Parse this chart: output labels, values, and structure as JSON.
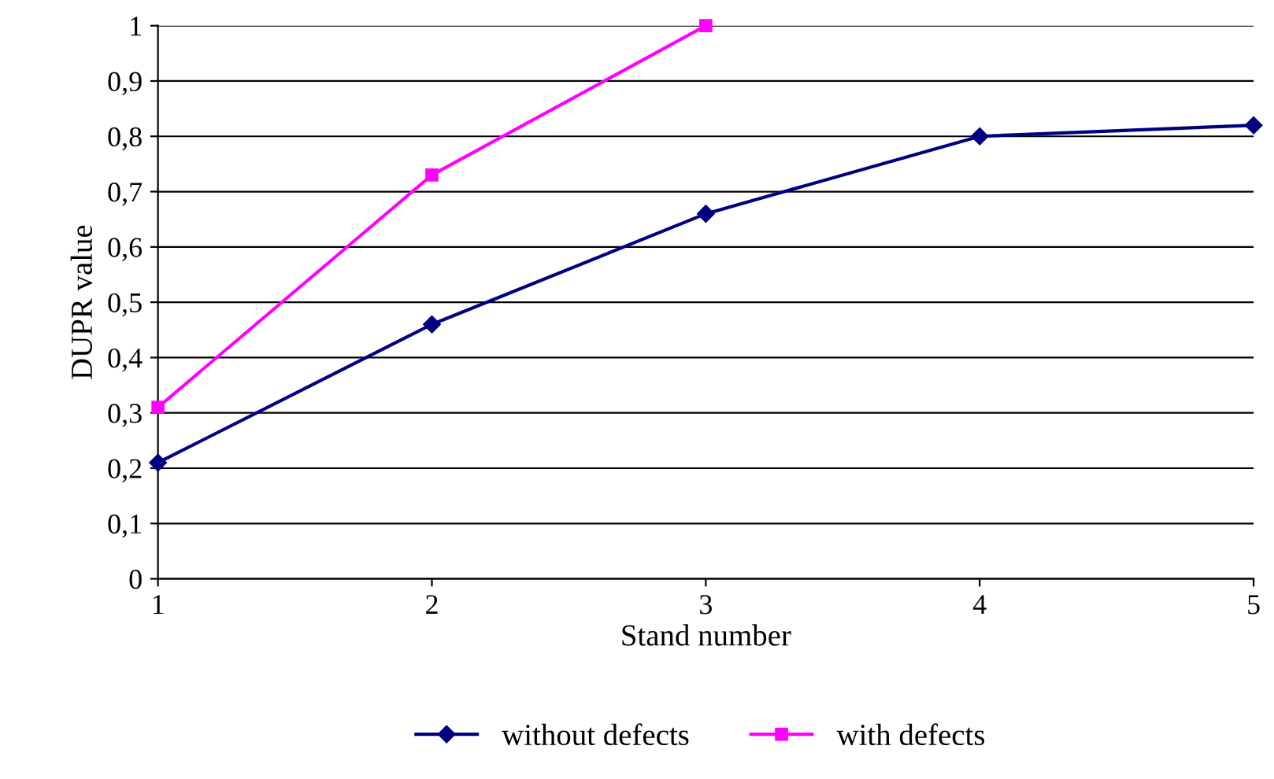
{
  "chart_data": {
    "type": "line",
    "xlabel": "Stand number",
    "ylabel": "DUPR value",
    "xlim": [
      1,
      5
    ],
    "xticks": [
      1,
      2,
      3,
      4,
      5
    ],
    "ylim": [
      0,
      1
    ],
    "yticks": [
      0,
      {
        "value": 0.1,
        "label": "0,1"
      },
      {
        "value": 0.2,
        "label": "0,2"
      },
      {
        "value": 0.3,
        "label": "0,3"
      },
      {
        "value": 0.4,
        "label": "0,4"
      },
      {
        "value": 0.5,
        "label": "0,5"
      },
      {
        "value": 0.6,
        "label": "0,6"
      },
      {
        "value": 0.7,
        "label": "0,7"
      },
      {
        "value": 0.8,
        "label": "0,8"
      },
      {
        "value": 0.9,
        "label": "0,9"
      },
      1
    ],
    "grid": "y",
    "legend": "bottom",
    "line_style": "solid",
    "series": [
      {
        "name": "without defects",
        "color": "#000080",
        "marker": "diamond",
        "x": [
          1,
          2,
          3,
          4,
          5
        ],
        "values": [
          0.21,
          0.46,
          0.66,
          0.8,
          0.82
        ]
      },
      {
        "name": "with defects",
        "color": "#ff00ff",
        "marker": "square",
        "x": [
          1,
          2,
          3
        ],
        "values": [
          0.31,
          0.73,
          1.0
        ]
      }
    ]
  }
}
